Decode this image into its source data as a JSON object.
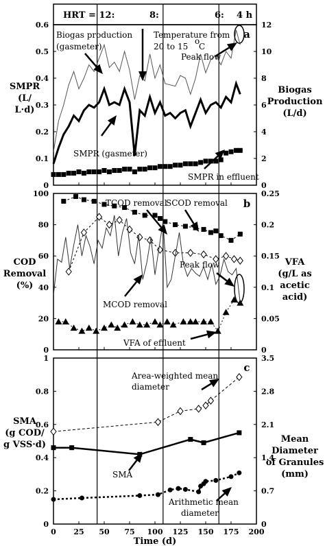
{
  "header": {
    "hrt_labels": [
      "HRT = 12:",
      "8:",
      "6:",
      "4 h"
    ]
  },
  "x_axis": {
    "title": "Time (d)",
    "ticks": [
      0,
      25,
      50,
      75,
      100,
      125,
      150,
      175,
      200
    ]
  },
  "chart_data": [
    {
      "type": "line",
      "panel_letter": "a",
      "ylabel_left": [
        "SMPR",
        "(L/",
        "L·d)"
      ],
      "ylabel_right": [
        "Biogas",
        "Production",
        "(L/d)"
      ],
      "xlim": [
        0,
        200
      ],
      "ylim_left": [
        0,
        0.6
      ],
      "ylim_right": [
        0,
        12
      ],
      "left_ticks": [
        "0",
        "0.1",
        "0.2",
        "0.3",
        "0.4",
        "0.5",
        "0.6"
      ],
      "right_ticks": [
        "0",
        "2",
        "4",
        "6",
        "8",
        "10",
        "12"
      ],
      "annotations": {
        "biogas": [
          "Biogas production",
          "(gasmeter)"
        ],
        "temperature": [
          "Temperature from",
          "20 to 15",
          "C",
          "o"
        ],
        "peak": "Peak flow",
        "smpr_gas": "SMPR (gasmeter)",
        "smpr_eff": "SMPR in effluent"
      },
      "series": [
        {
          "x": [
            0,
            5,
            10,
            15,
            20,
            25,
            30,
            35,
            40,
            45,
            50,
            55,
            60,
            65,
            70,
            75,
            80,
            85,
            90,
            95,
            100,
            105,
            110,
            115,
            120,
            125,
            130,
            135,
            140,
            145,
            150,
            155,
            160,
            165,
            170,
            175,
            180,
            184
          ],
          "y": [
            2.5,
            4.8,
            6.0,
            7.5,
            8.5,
            7.2,
            8.0,
            9.0,
            8.5,
            9.5,
            10.5,
            8.8,
            9.2,
            8.5,
            10.0,
            8.6,
            6.4,
            8.2,
            7.8,
            9.8,
            8.0,
            9.0,
            7.6,
            7.5,
            7.4,
            8.2,
            8.0,
            6.8,
            8.0,
            9.8,
            8.4,
            9.4,
            9.7,
            9.0,
            10.0,
            9.5,
            11.6,
            10.5
          ],
          "axis": "right"
        },
        {
          "name": "SMPR (gasmeter)",
          "x": [
            0,
            5,
            10,
            15,
            20,
            25,
            30,
            35,
            40,
            45,
            50,
            55,
            60,
            65,
            70,
            75,
            80,
            85,
            90,
            95,
            100,
            105,
            110,
            115,
            120,
            125,
            130,
            135,
            140,
            145,
            150,
            155,
            160,
            165,
            170,
            175,
            180,
            184
          ],
          "y": [
            0.08,
            0.14,
            0.19,
            0.22,
            0.26,
            0.24,
            0.28,
            0.3,
            0.29,
            0.31,
            0.36,
            0.3,
            0.31,
            0.3,
            0.36,
            0.31,
            0.11,
            0.28,
            0.26,
            0.33,
            0.27,
            0.31,
            0.26,
            0.27,
            0.25,
            0.27,
            0.28,
            0.22,
            0.27,
            0.32,
            0.27,
            0.3,
            0.31,
            0.29,
            0.33,
            0.31,
            0.38,
            0.34
          ],
          "axis": "left"
        },
        {
          "name": "SMPR in effluent",
          "x": [
            0,
            5,
            10,
            15,
            20,
            25,
            30,
            35,
            40,
            45,
            50,
            55,
            60,
            65,
            70,
            75,
            80,
            85,
            90,
            95,
            100,
            105,
            110,
            115,
            120,
            125,
            130,
            135,
            140,
            145,
            150,
            155,
            160,
            165,
            170,
            175,
            180,
            184
          ],
          "y": [
            0.04,
            0.04,
            0.04,
            0.045,
            0.045,
            0.05,
            0.045,
            0.05,
            0.05,
            0.05,
            0.055,
            0.05,
            0.055,
            0.055,
            0.06,
            0.06,
            0.05,
            0.06,
            0.06,
            0.065,
            0.065,
            0.07,
            0.07,
            0.07,
            0.075,
            0.075,
            0.08,
            0.08,
            0.08,
            0.085,
            0.09,
            0.09,
            0.09,
            0.095,
            0.12,
            0.125,
            0.13,
            0.13
          ],
          "axis": "left",
          "style": "markers"
        }
      ]
    },
    {
      "type": "line",
      "panel_letter": "b",
      "ylabel_left": [
        "COD",
        "Removal",
        "(%)"
      ],
      "ylabel_right": [
        "VFA",
        "(g/L as",
        "acetic",
        "acid)"
      ],
      "xlim": [
        0,
        200
      ],
      "ylim_left": [
        0,
        100
      ],
      "ylim_right": [
        0,
        0.25
      ],
      "left_ticks": [
        "0",
        "20",
        "40",
        "60",
        "80",
        "100"
      ],
      "right_ticks": [
        "0",
        "0.05",
        "0.1",
        "0.15",
        "0.2",
        "0.25"
      ],
      "annotations": {
        "tcod": "TCOD removal",
        "scod": "SCOD removal",
        "mcod": "MCOD removal",
        "peak": "Peak flow",
        "vfa": "VFA of effluent"
      },
      "series": [
        {
          "name": "TCOD removal",
          "x": [
            10,
            22,
            30,
            40,
            50,
            60,
            70,
            80,
            90,
            100,
            105,
            110,
            120,
            130,
            140,
            148,
            155,
            160,
            165,
            175,
            184
          ],
          "y": [
            95,
            98,
            96,
            95,
            93,
            92,
            91,
            88,
            86,
            86,
            84,
            82,
            80,
            79,
            78,
            77,
            75,
            76,
            73,
            70,
            74
          ]
        },
        {
          "name": "SCOD removal",
          "x": [
            15,
            30,
            45,
            55,
            65,
            75,
            85,
            95,
            105,
            120,
            135,
            148,
            160,
            170,
            178,
            184
          ],
          "y": [
            50,
            75,
            85,
            80,
            83,
            77,
            72,
            70,
            64,
            62,
            62,
            61,
            58,
            60,
            58,
            57
          ]
        },
        {
          "name": "MCOD removal",
          "x": [
            0,
            4,
            8,
            12,
            16,
            20,
            24,
            28,
            32,
            36,
            40,
            44,
            48,
            52,
            56,
            60,
            64,
            68,
            72,
            76,
            80,
            84,
            88,
            92,
            96,
            100,
            104,
            108,
            112,
            116,
            120,
            124,
            128,
            132,
            136,
            140,
            144,
            148,
            152,
            156,
            160,
            164,
            168,
            172,
            176,
            180,
            184
          ],
          "y": [
            35,
            58,
            56,
            72,
            52,
            67,
            80,
            60,
            73,
            66,
            55,
            70,
            65,
            78,
            73,
            86,
            60,
            75,
            84,
            62,
            55,
            73,
            45,
            56,
            72,
            48,
            65,
            82,
            40,
            45,
            60,
            75,
            55,
            47,
            52,
            49,
            47,
            53,
            45,
            55,
            42,
            47,
            58,
            50,
            48,
            52,
            30
          ]
        },
        {
          "name": "VFA of effluent",
          "x": [
            5,
            12,
            20,
            28,
            35,
            42,
            50,
            57,
            63,
            70,
            78,
            85,
            92,
            100,
            105,
            112,
            118,
            128,
            135,
            140,
            148,
            155,
            162,
            170,
            178,
            184
          ],
          "y": [
            0.045,
            0.045,
            0.035,
            0.03,
            0.035,
            0.03,
            0.035,
            0.04,
            0.035,
            0.04,
            0.045,
            0.04,
            0.04,
            0.045,
            0.04,
            0.045,
            0.04,
            0.045,
            0.045,
            0.045,
            0.045,
            0.045,
            0.03,
            0.06,
            0.08,
            0.075
          ],
          "axis": "right"
        }
      ]
    },
    {
      "type": "line",
      "panel_letter": "c",
      "ylabel_left": [
        "SMA",
        "(g COD/",
        "g VSS·d)"
      ],
      "ylabel_right": [
        "Mean",
        "Diameter",
        "of Granules",
        "(mm)"
      ],
      "xlim": [
        0,
        200
      ],
      "ylim_left": [
        0,
        1
      ],
      "ylim_right": [
        0,
        3.5
      ],
      "left_ticks": [
        "0",
        "0.2",
        "0.4",
        "0.6",
        "0.8",
        "1"
      ],
      "right_ticks": [
        "0",
        "0.7",
        "1.4",
        "2.1",
        "2.8",
        "3.5"
      ],
      "annotations": {
        "area": [
          "Area-weighted mean",
          "diameter"
        ],
        "sma": "SMA",
        "arith": [
          "Arithmetic mean",
          "diameter"
        ]
      },
      "series": [
        {
          "name": "SMA",
          "x": [
            0,
            18,
            85,
            135,
            148,
            183
          ],
          "y": [
            0.46,
            0.46,
            0.42,
            0.51,
            0.49,
            0.55
          ]
        },
        {
          "name": "Area-weighted mean diameter",
          "x": [
            0,
            103,
            125,
            143,
            150,
            155,
            183
          ],
          "y": [
            1.95,
            2.15,
            2.38,
            2.43,
            2.5,
            2.6,
            3.1
          ],
          "axis": "right"
        },
        {
          "name": "Arithmetic mean diameter",
          "x": [
            0,
            28,
            85,
            103,
            115,
            123,
            130,
            143,
            145,
            148,
            150,
            160,
            175,
            183
          ],
          "y": [
            0.52,
            0.55,
            0.6,
            0.62,
            0.72,
            0.75,
            0.73,
            0.68,
            0.8,
            0.85,
            0.9,
            0.92,
            1.0,
            1.08
          ],
          "axis": "right"
        }
      ]
    }
  ]
}
